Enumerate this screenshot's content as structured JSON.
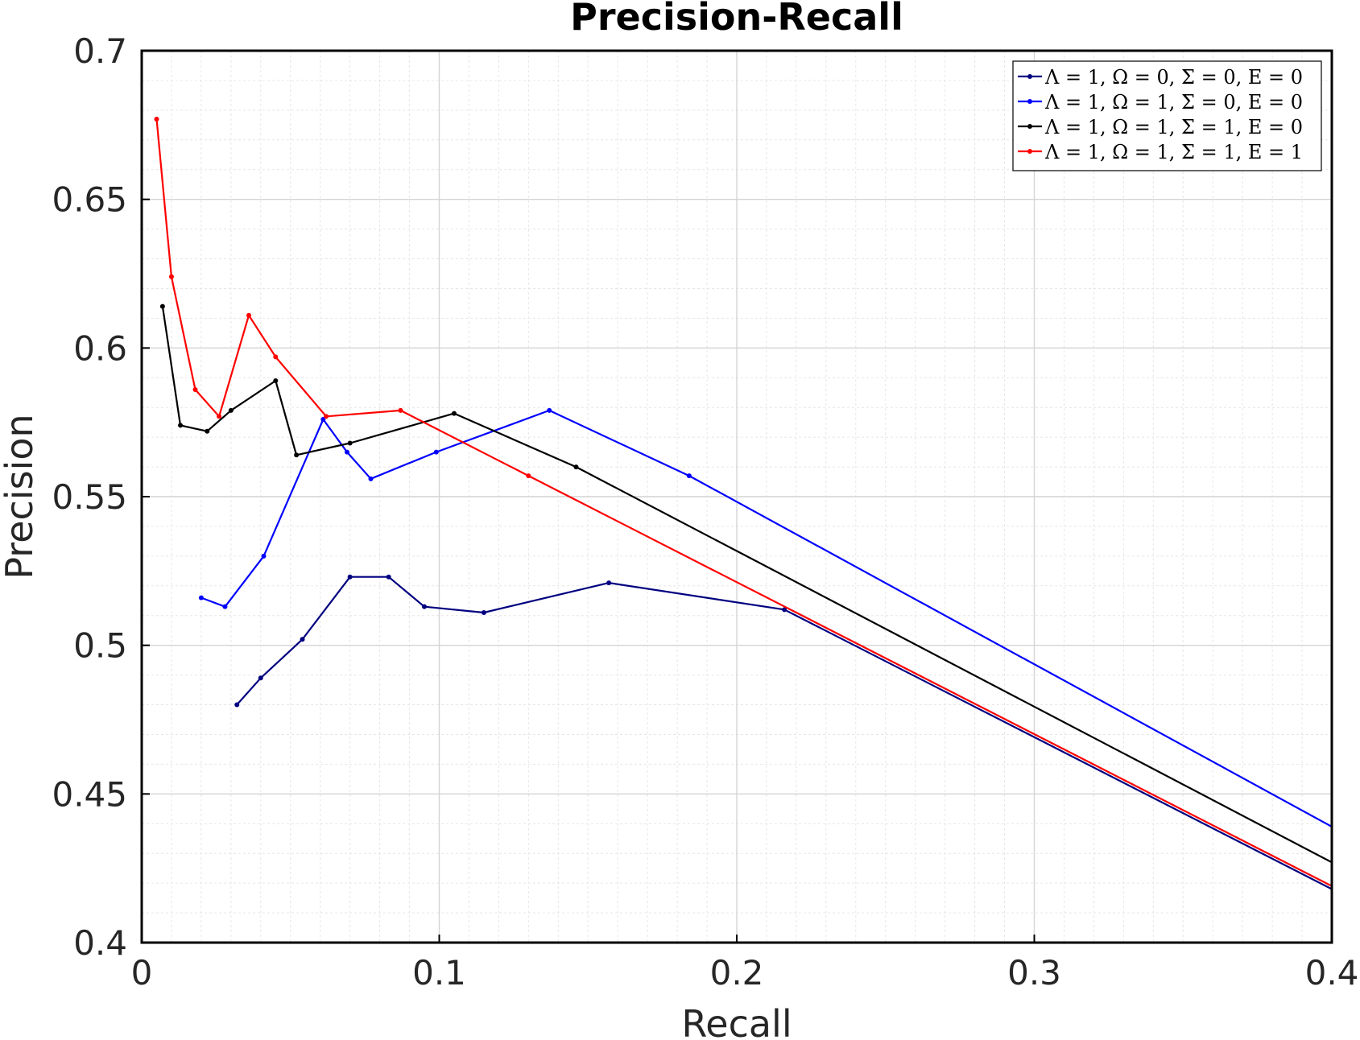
{
  "chart_data": {
    "type": "line",
    "title": "Precision-Recall",
    "xlabel": "Recall",
    "ylabel": "Precision",
    "xlim": [
      0,
      0.4
    ],
    "ylim": [
      0.4,
      0.7
    ],
    "x_ticks": [
      0,
      0.1,
      0.2,
      0.3,
      0.4
    ],
    "x_tick_labels": [
      "0",
      "0.1",
      "0.2",
      "0.3",
      "0.4"
    ],
    "y_ticks": [
      0.4,
      0.45,
      0.5,
      0.55,
      0.6,
      0.65,
      0.7
    ],
    "y_tick_labels": [
      "0.4",
      "0.45",
      "0.5",
      "0.55",
      "0.6",
      "0.65",
      "0.7"
    ],
    "grid": true,
    "minor_grid": true,
    "legend_position": "top-right",
    "series": [
      {
        "name": "Λ = 1, Ω = 0, Σ = 0, E = 0",
        "color": "#000080",
        "x": [
          0.032,
          0.04,
          0.054,
          0.07,
          0.083,
          0.095,
          0.115,
          0.157,
          0.216,
          0.4
        ],
        "y": [
          0.48,
          0.489,
          0.502,
          0.523,
          0.523,
          0.513,
          0.511,
          0.521,
          0.512,
          0.418
        ]
      },
      {
        "name": "Λ = 1, Ω = 1, Σ = 0, E = 0",
        "color": "#0000ff",
        "x": [
          0.02,
          0.028,
          0.041,
          0.061,
          0.069,
          0.077,
          0.099,
          0.137,
          0.184,
          0.4
        ],
        "y": [
          0.516,
          0.513,
          0.53,
          0.576,
          0.565,
          0.556,
          0.565,
          0.579,
          0.557,
          0.439
        ]
      },
      {
        "name": "Λ = 1, Ω = 1, Σ = 1, E = 0",
        "color": "#000000",
        "x": [
          0.007,
          0.013,
          0.022,
          0.03,
          0.045,
          0.052,
          0.07,
          0.105,
          0.146,
          0.4
        ],
        "y": [
          0.614,
          0.574,
          0.572,
          0.579,
          0.589,
          0.564,
          0.568,
          0.578,
          0.56,
          0.427
        ]
      },
      {
        "name": "Λ = 1, Ω = 1, Σ = 1, E = 1",
        "color": "#ff0000",
        "x": [
          0.005,
          0.01,
          0.018,
          0.026,
          0.036,
          0.045,
          0.062,
          0.087,
          0.13,
          0.4
        ],
        "y": [
          0.677,
          0.624,
          0.586,
          0.577,
          0.611,
          0.597,
          0.577,
          0.579,
          0.557,
          0.419
        ]
      }
    ]
  }
}
